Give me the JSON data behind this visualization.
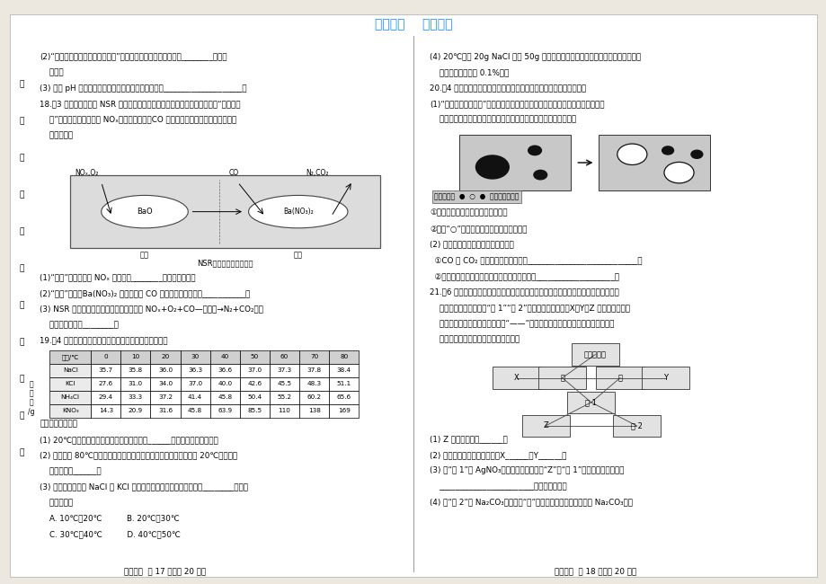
{
  "title": "精品文档    欢迎下载",
  "title_color": "#1E90FF",
  "footer_left": "化学试卷  第 17 页（共 20 页）",
  "footer_right": "化学试卷  第 18 页（共 20 页）",
  "margin_labels": [
    "在",
    "此",
    "考",
    "生",
    "守",
    "卷",
    "上",
    "答",
    "题",
    "无",
    "效"
  ],
  "left_lines": [
    "(2)“一定溶质质量分数溶液的配制”实验的基本步骤包括：计算、________、装瓶",
    "    保存。",
    "(3) 利用 pH 试纸棆验溶液的酸碱性，正确的操作应是____________________。",
    "18.（3 分）如图所示为 NSR 汽车尾气处理流程示意图。利用该技术，先后经“储存、还",
    "    原”后可将发动机产生的 NOₓ（氮氧化物）、CO 等进行无害化处理。请按要求回答",
    "    下列问题："
  ],
  "after_diag_lines": [
    "(1)“储存”阶段，吸收 NOₓ 的物质是________（填化学式）。",
    "(2)“还原”阶段，Ba(NO₃)₂ 与尾气中的 CO 反应的化学方程式为___________。",
    "(3) NSR 汽车尾气处理的化学原理可表示为 NOₓ+O₂+CO—娱化剂→N₂+CO₂，该",
    "    反应的娱化剂是________。",
    "19.（4 分）几种物质在不同温度时的溶解度如下表所示："
  ],
  "table_headers": [
    "温度/℃",
    "0",
    "10",
    "20",
    "30",
    "40",
    "50",
    "60",
    "70",
    "80"
  ],
  "table_rows": [
    [
      "NaCl",
      "35.7",
      "35.8",
      "36.0",
      "36.3",
      "36.6",
      "37.0",
      "37.3",
      "37.8",
      "38.4"
    ],
    [
      "KCl",
      "27.6",
      "31.0",
      "34.0",
      "37.0",
      "40.0",
      "42.6",
      "45.5",
      "48.3",
      "51.1"
    ],
    [
      "NH₄Cl",
      "29.4",
      "33.3",
      "37.2",
      "41.4",
      "45.8",
      "50.4",
      "55.2",
      "60.2",
      "65.6"
    ],
    [
      "KNO₃",
      "14.3",
      "20.9",
      "31.6",
      "45.8",
      "63.9",
      "85.5",
      "110",
      "138",
      "169"
    ]
  ],
  "table_side_label": [
    "溶",
    "解",
    "度",
    "/g"
  ],
  "q19_lines": [
    "请回答下列问题：",
    "(1) 20℃时，上述四种物质中溶解度最大的是______（填化学式，下同）。",
    "(2) 将温度为 80℃、质量相同的上述四种物质的饱和溶液分别降温到 20℃，析出晶",
    "    体最多的是______。",
    "(3) 在某温度范围内 NaCl 和 KCl 的溶解度可能相等，该温度范围是________（填字",
    "    母序号）。",
    "    A. 10℃～20℃          B. 20℃～30℃",
    "    C. 30℃～40℃          D. 40℃～50℃"
  ],
  "right_top_lines": [
    "(4) 20℃时将 20g NaCl 加入 50g 水中，充分溶解后所得溶液中溶质的质量分数是",
    "    （计算结果精确至 0.1%）。",
    "20.（4 分）化学知识蕋含着丰富的化学思想。请根据要求回答列问题：",
    "(1)“宏观、微观、符号”是化学学科特有的表征方式。如图是装有硫酸钓溶液的试",
    "    管中加入氯化銀溶液前后主要离子种类及数目关系变化的示意图："
  ],
  "after_ion_lines": [
    "①试管中发生反应的化学方程式为：",
    "②图中“○”代表的离子是（填离子符号）。",
    "(2) 用所学知识解释或说明下列问题：",
    "  ①CO 与 CO₂ 性质不同的本质原因是____________________________；",
    "  ②学习和研究几千万种化学物质最有效的方法是____________________。",
    "21.（6 分）在化学复习课上小明与同学们一起讨论交流，构建了无机物性质及转化关系",
    "    图（如图所示）。图中“盐 1”“盐 2”表示两种不同的盐，X、Y、Z 是除酸、碱、盐",
    "    之外的物质类别，物质类别间有“——”相连表示可能发生化学反应。请依据所学",
    "    初中化学知识，按要求回答下列问题："
  ],
  "q21_lines": [
    "(1) Z 的物质类别是______。",
    "(2) 写出一种符合要求的化式：X______、Y______。",
    "(3) 若“盐 1”为 AgNO₃，则图中符合要求的“Z”与“盐 1”反应的化学方程式为",
    "    ________________________（任写一个）。",
    "(4) 若“盐 2”为 Na₂CO₃，则图中“碱”应具有的性质有符合要求的 Na₂CO₃，与"
  ],
  "diag_labels": {
    "nox": "NOₓ,O₂",
    "co": "CO",
    "n2co2": "N₂,CO₂",
    "bao": "BaO",
    "bano3": "Ba(NO₃)₂",
    "store": "储存",
    "reduce": "还原",
    "title": "NSR汽车尾气处理流程图"
  },
  "net_labels": {
    "indicator": "酸碱指示剂",
    "X": "X",
    "acid": "酸",
    "alkali": "碱",
    "Y": "Y",
    "salt1": "盐 1",
    "Z": "Z",
    "salt2": "盐 2"
  },
  "legend_text": "说明：图中  ●  ○  ●  表示不同的离子"
}
